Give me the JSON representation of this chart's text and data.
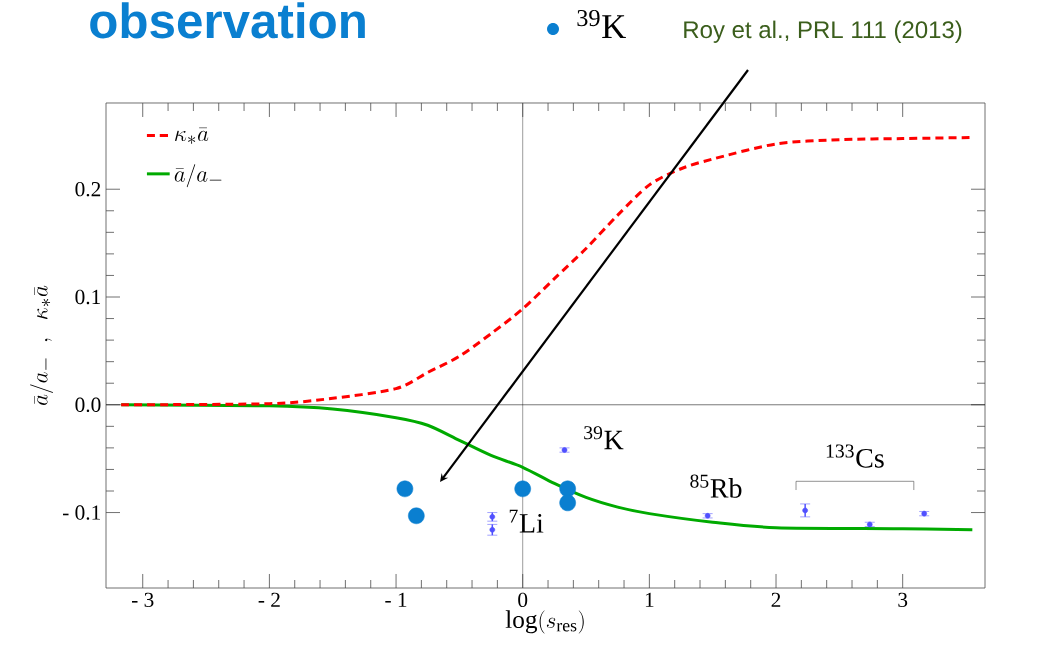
{
  "chart_data": {
    "type": "line",
    "title": "observation",
    "xlabel": "\\log(s_{\\rm res})",
    "ylabel": "\\bar{a}/a_- \\;\\;,\\;\\; \\kappa_*\\bar{a}",
    "xlim": [
      -3.29,
      3.65
    ],
    "ylim": [
      -0.17,
      0.28
    ],
    "xticks": [
      {
        "value": -3,
        "label": "- 3"
      },
      {
        "value": -2,
        "label": "- 2"
      },
      {
        "value": -1,
        "label": "- 1"
      },
      0,
      1,
      2,
      3
    ],
    "yticks": [
      {
        "value": -0.1,
        "label": "- 0.1"
      },
      {
        "value": 0,
        "label": "0.0"
      },
      0.1,
      0.2
    ],
    "grid": false,
    "legend": "top left",
    "series": [
      {
        "name": "\\kappa_*\\bar{a}",
        "color": "#ff0000",
        "line_style": "dashed",
        "marker": "none",
        "x": [
          -3.17,
          -2,
          -1.5,
          -1,
          -0.75,
          -0.5,
          -0.25,
          0,
          0.25,
          0.5,
          0.75,
          1,
          1.25,
          1.5,
          2,
          2.5,
          3,
          3.55
        ],
        "values": [
          0,
          0.001,
          0.006,
          0.015,
          0.03,
          0.045,
          0.066,
          0.089,
          0.117,
          0.145,
          0.176,
          0.204,
          0.219,
          0.228,
          0.242,
          0.246,
          0.247,
          0.248
        ]
      },
      {
        "name": "\\bar{a}/a_-",
        "color": "#00aa00",
        "line_style": "solid",
        "marker": "none",
        "x": [
          -3.17,
          -2,
          -1.5,
          -1,
          -0.75,
          -0.5,
          -0.25,
          0,
          0.25,
          0.5,
          0.75,
          1,
          1.5,
          2,
          3,
          3.55
        ],
        "values": [
          0,
          -0.001,
          -0.004,
          -0.012,
          -0.019,
          -0.033,
          -0.047,
          -0.058,
          -0.073,
          -0.086,
          -0.095,
          -0.101,
          -0.109,
          -0.114,
          -0.115,
          -0.116
        ]
      },
      {
        "name": "$^{39}$K",
        "type": "scatter",
        "color": "#0a7fd0",
        "marker": "circle",
        "x": [
          -0.93,
          -0.84,
          0,
          0.355,
          0.355
        ],
        "values": [
          -0.078,
          -0.103,
          -0.078,
          -0.078,
          -0.091
        ]
      },
      {
        "type": "scatter",
        "color": "#5050ff",
        "marker": "circle",
        "x": [
          -0.24,
          -0.24,
          0.33,
          1.46,
          2.23,
          2.74,
          3.17
        ],
        "values": [
          -0.104,
          -0.116,
          -0.042,
          -0.103,
          -0.098,
          -0.111,
          -0.101
        ],
        "errors": [
          0.004,
          0.005,
          0.002,
          0.002,
          0.006,
          0.002,
          0.002
        ]
      }
    ],
    "ref_lines": [
      {
        "axis": "x",
        "value": 0,
        "color": "#444444"
      },
      {
        "axis": "y",
        "value": 0,
        "color": "#000000"
      }
    ],
    "annotations": [
      "$^{39}$K",
      "$^{85}$Rb",
      "$^{133}$Cs",
      "$^{7}$Li",
      "Roy et al., PRL 111 (2013)"
    ]
  }
}
